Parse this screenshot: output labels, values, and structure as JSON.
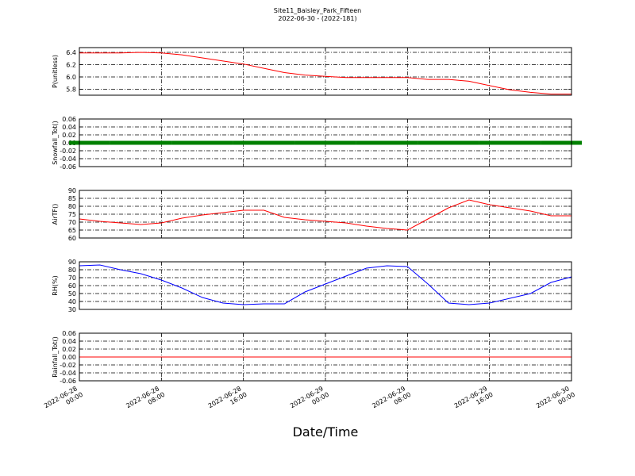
{
  "figure": {
    "title": "Site11_Baisley_Park_Fifteen",
    "subtitle": "2022-06-30 - (2022-181)",
    "x_label": "Date/Time"
  },
  "chart_data": [
    {
      "type": "line",
      "y_label": "P(unitless)",
      "color": "#ff0000",
      "grid": true,
      "x": [
        "2022-06-28 00:00",
        "2022-06-28 02:00",
        "2022-06-28 04:00",
        "2022-06-28 06:00",
        "2022-06-28 08:00",
        "2022-06-28 10:00",
        "2022-06-28 12:00",
        "2022-06-28 14:00",
        "2022-06-28 16:00",
        "2022-06-28 18:00",
        "2022-06-28 20:00",
        "2022-06-28 22:00",
        "2022-06-29 00:00",
        "2022-06-29 02:00",
        "2022-06-29 04:00",
        "2022-06-29 06:00",
        "2022-06-29 08:00",
        "2022-06-29 10:00",
        "2022-06-29 12:00",
        "2022-06-29 14:00",
        "2022-06-29 16:00",
        "2022-06-29 18:00",
        "2022-06-29 20:00",
        "2022-06-29 22:00",
        "2022-06-30 00:00"
      ],
      "values": [
        6.39,
        6.39,
        6.39,
        6.4,
        6.39,
        6.36,
        6.31,
        6.26,
        6.21,
        6.14,
        6.07,
        6.03,
        6.01,
        5.99,
        5.99,
        5.99,
        5.99,
        5.96,
        5.96,
        5.93,
        5.86,
        5.79,
        5.75,
        5.72,
        5.72
      ],
      "xlim": [
        "2022-06-28 00:00",
        "2022-06-30 00:00"
      ],
      "xticks": [
        "2022-06-28 00:00",
        "2022-06-28 08:00",
        "2022-06-28 16:00",
        "2022-06-29 00:00",
        "2022-06-29 08:00",
        "2022-06-29 16:00",
        "2022-06-30 00:00"
      ],
      "ylim": [
        5.703,
        6.477
      ],
      "yticks": [
        5.8,
        {
          "value": 6,
          "label": "6.0"
        },
        6.2,
        6.4
      ]
    },
    {
      "type": "scatter",
      "y_label": "Snowfall_Tot()",
      "color": "#008000",
      "grid": true,
      "x": [
        "2022-06-28 00:00",
        "2022-06-28 02:00",
        "2022-06-28 04:00",
        "2022-06-28 06:00",
        "2022-06-28 08:00",
        "2022-06-28 10:00",
        "2022-06-28 12:00",
        "2022-06-28 14:00",
        "2022-06-28 16:00",
        "2022-06-28 18:00",
        "2022-06-28 20:00",
        "2022-06-28 22:00",
        "2022-06-29 00:00",
        "2022-06-29 02:00",
        "2022-06-29 04:00",
        "2022-06-29 06:00",
        "2022-06-29 08:00",
        "2022-06-29 10:00",
        "2022-06-29 12:00",
        "2022-06-29 14:00",
        "2022-06-29 16:00",
        "2022-06-29 18:00",
        "2022-06-29 20:00",
        "2022-06-29 22:00",
        "2022-06-30 00:00"
      ],
      "values": [
        0,
        0,
        0,
        0,
        0,
        0,
        0,
        0,
        0,
        0,
        0,
        0,
        0,
        0,
        0,
        0,
        0,
        0,
        0,
        0,
        0,
        0,
        0,
        0,
        0
      ],
      "xlim": [
        "2022-06-28 00:00",
        "2022-06-30 00:00"
      ],
      "xticks": [
        "2022-06-28 00:00",
        "2022-06-28 08:00",
        "2022-06-28 16:00",
        "2022-06-29 00:00",
        "2022-06-29 08:00",
        "2022-06-29 16:00",
        "2022-06-30 00:00"
      ],
      "ylim": [
        -0.06,
        0.06
      ],
      "yticks": [
        -0.06,
        -0.04,
        -0.02,
        {
          "value": 0,
          "label": "0.00"
        },
        0.02,
        0.04,
        0.06
      ]
    },
    {
      "type": "line",
      "y_label": "AirTF()",
      "color": "#ff0000",
      "grid": true,
      "x": [
        "2022-06-28 00:00",
        "2022-06-28 02:00",
        "2022-06-28 04:00",
        "2022-06-28 06:00",
        "2022-06-28 08:00",
        "2022-06-28 10:00",
        "2022-06-28 12:00",
        "2022-06-28 14:00",
        "2022-06-28 16:00",
        "2022-06-28 18:00",
        "2022-06-28 20:00",
        "2022-06-28 22:00",
        "2022-06-29 00:00",
        "2022-06-29 02:00",
        "2022-06-29 04:00",
        "2022-06-29 06:00",
        "2022-06-29 08:00",
        "2022-06-29 10:00",
        "2022-06-29 12:00",
        "2022-06-29 14:00",
        "2022-06-29 16:00",
        "2022-06-29 18:00",
        "2022-06-29 20:00",
        "2022-06-29 22:00",
        "2022-06-30 00:00"
      ],
      "values": [
        72,
        70.5,
        69.5,
        68.5,
        69.5,
        72.5,
        74.5,
        76,
        77.5,
        77.5,
        73,
        71.5,
        70.5,
        69.5,
        67.5,
        66,
        65,
        72,
        79,
        84,
        81,
        79,
        77,
        74,
        74
      ],
      "xlim": [
        "2022-06-28 00:00",
        "2022-06-30 00:00"
      ],
      "xticks": [
        "2022-06-28 00:00",
        "2022-06-28 08:00",
        "2022-06-28 16:00",
        "2022-06-29 00:00",
        "2022-06-29 08:00",
        "2022-06-29 16:00",
        "2022-06-30 00:00"
      ],
      "ylim": [
        60,
        90
      ],
      "yticks": [
        60,
        65,
        70,
        75,
        80,
        85,
        90
      ]
    },
    {
      "type": "line",
      "y_label": "RH(%)",
      "color": "#0000ff",
      "grid": true,
      "x": [
        "2022-06-28 00:00",
        "2022-06-28 02:00",
        "2022-06-28 04:00",
        "2022-06-28 06:00",
        "2022-06-28 08:00",
        "2022-06-28 10:00",
        "2022-06-28 12:00",
        "2022-06-28 14:00",
        "2022-06-28 16:00",
        "2022-06-28 18:00",
        "2022-06-28 20:00",
        "2022-06-28 22:00",
        "2022-06-29 00:00",
        "2022-06-29 02:00",
        "2022-06-29 04:00",
        "2022-06-29 06:00",
        "2022-06-29 08:00",
        "2022-06-29 10:00",
        "2022-06-29 12:00",
        "2022-06-29 14:00",
        "2022-06-29 16:00",
        "2022-06-29 18:00",
        "2022-06-29 20:00",
        "2022-06-29 22:00",
        "2022-06-30 00:00"
      ],
      "values": [
        85,
        86,
        80,
        75,
        67,
        57,
        45,
        38,
        36,
        37,
        37,
        52,
        62,
        72,
        82,
        85,
        84,
        62,
        38,
        36,
        38,
        44,
        50,
        64,
        71
      ],
      "xlim": [
        "2022-06-28 00:00",
        "2022-06-30 00:00"
      ],
      "xticks": [
        "2022-06-28 00:00",
        "2022-06-28 08:00",
        "2022-06-28 16:00",
        "2022-06-29 00:00",
        "2022-06-29 08:00",
        "2022-06-29 16:00",
        "2022-06-30 00:00"
      ],
      "ylim": [
        30,
        90
      ],
      "yticks": [
        30,
        40,
        50,
        60,
        70,
        80,
        90
      ]
    },
    {
      "type": "line",
      "y_label": "Rainfall_Tot()",
      "color": "#ff0000",
      "grid": true,
      "x": [
        "2022-06-28 00:00",
        "2022-06-28 02:00",
        "2022-06-28 04:00",
        "2022-06-28 06:00",
        "2022-06-28 08:00",
        "2022-06-28 10:00",
        "2022-06-28 12:00",
        "2022-06-28 14:00",
        "2022-06-28 16:00",
        "2022-06-28 18:00",
        "2022-06-28 20:00",
        "2022-06-28 22:00",
        "2022-06-29 00:00",
        "2022-06-29 02:00",
        "2022-06-29 04:00",
        "2022-06-29 06:00",
        "2022-06-29 08:00",
        "2022-06-29 10:00",
        "2022-06-29 12:00",
        "2022-06-29 14:00",
        "2022-06-29 16:00",
        "2022-06-29 18:00",
        "2022-06-29 20:00",
        "2022-06-29 22:00",
        "2022-06-30 00:00"
      ],
      "values": [
        0,
        0,
        0,
        0,
        0,
        0,
        0,
        0,
        0,
        0,
        0,
        0,
        0,
        0,
        0,
        0,
        0,
        0,
        0,
        0,
        0,
        0,
        0,
        0,
        0
      ],
      "xlim": [
        "2022-06-28 00:00",
        "2022-06-30 00:00"
      ],
      "xticks": [
        "2022-06-28 00:00",
        "2022-06-28 08:00",
        "2022-06-28 16:00",
        "2022-06-29 00:00",
        "2022-06-29 08:00",
        "2022-06-29 16:00",
        "2022-06-30 00:00"
      ],
      "ylim": [
        -0.06,
        0.06
      ],
      "yticks": [
        -0.06,
        -0.04,
        -0.02,
        {
          "value": 0,
          "label": "0.00"
        },
        0.02,
        0.04,
        0.06
      ]
    }
  ]
}
